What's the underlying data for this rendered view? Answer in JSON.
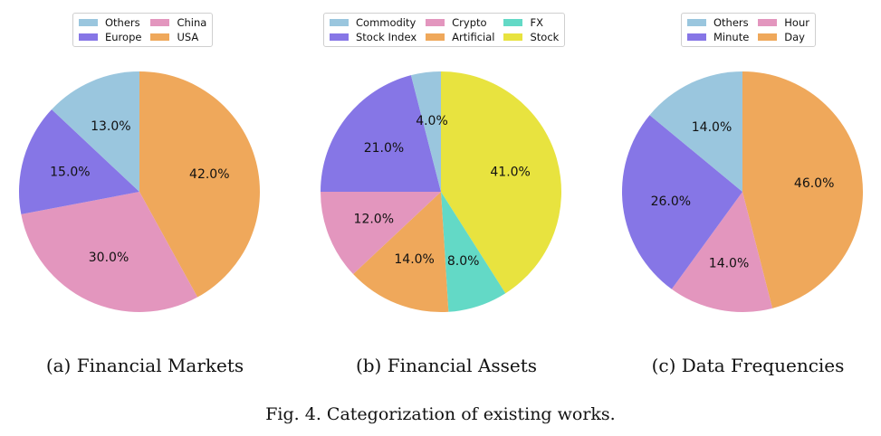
{
  "chart_data": [
    {
      "type": "pie",
      "caption": "(a) Financial Markets",
      "legend_ncol": 2,
      "legend": [
        "Others",
        "Europe",
        "China",
        "USA"
      ],
      "slices": [
        {
          "label": "USA",
          "value": 42.0,
          "pct": "42.0%",
          "color": "#EFA85B"
        },
        {
          "label": "China",
          "value": 30.0,
          "pct": "30.0%",
          "color": "#E396BE"
        },
        {
          "label": "Europe",
          "value": 15.0,
          "pct": "15.0%",
          "color": "#8676E6"
        },
        {
          "label": "Others",
          "value": 13.0,
          "pct": "13.0%",
          "color": "#9AC6DE"
        }
      ]
    },
    {
      "type": "pie",
      "caption": "(b) Financial Assets",
      "legend_ncol": 3,
      "legend": [
        "Commodity",
        "Stock Index",
        "Crypto",
        "Artificial",
        "FX",
        "Stock"
      ],
      "slices": [
        {
          "label": "Stock",
          "value": 41.0,
          "pct": "41.0%",
          "color": "#E8E33F"
        },
        {
          "label": "FX",
          "value": 8.0,
          "pct": "8.0%",
          "color": "#63D9C6"
        },
        {
          "label": "Artificial",
          "value": 14.0,
          "pct": "14.0%",
          "color": "#EFA85B"
        },
        {
          "label": "Crypto",
          "value": 12.0,
          "pct": "12.0%",
          "color": "#E396BE"
        },
        {
          "label": "Stock Index",
          "value": 21.0,
          "pct": "21.0%",
          "color": "#8676E6"
        },
        {
          "label": "Commodity",
          "value": 4.0,
          "pct": "4.0%",
          "color": "#9AC6DE"
        }
      ]
    },
    {
      "type": "pie",
      "caption": "(c) Data Frequencies",
      "legend_ncol": 2,
      "legend": [
        "Others",
        "Minute",
        "Hour",
        "Day"
      ],
      "slices": [
        {
          "label": "Day",
          "value": 46.0,
          "pct": "46.0%",
          "color": "#EFA85B"
        },
        {
          "label": "Hour",
          "value": 14.0,
          "pct": "14.0%",
          "color": "#E396BE"
        },
        {
          "label": "Minute",
          "value": 26.0,
          "pct": "26.0%",
          "color": "#8676E6"
        },
        {
          "label": "Others",
          "value": 14.0,
          "pct": "14.0%",
          "color": "#9AC6DE"
        }
      ]
    }
  ],
  "figure_caption": "Fig. 4.  Categorization of existing works."
}
